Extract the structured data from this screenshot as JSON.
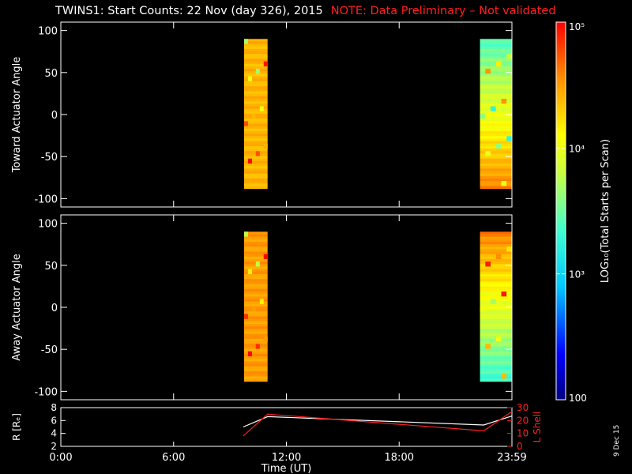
{
  "title": {
    "main": "TWINS1: Start Counts: 22 Nov (day 326), 2015",
    "note": "NOTE: Data Preliminary – Not validated"
  },
  "stamp": "9 Dec 15",
  "colors": {
    "background": "#000000",
    "axes": "#ffffff",
    "note": "#ff2020",
    "lshell": "#ff2020",
    "r_line": "#ffffff"
  },
  "chart_data": [
    {
      "type": "heatmap",
      "panel": "toward",
      "ylabel": "Toward Actuator Angle",
      "ylim": [
        -110,
        110
      ],
      "yticks": [
        "100",
        "50",
        "0",
        "-50",
        "-100"
      ],
      "ytick_values": [
        100,
        50,
        0,
        -50,
        -100
      ],
      "xlim": [
        0,
        24
      ],
      "blocks": [
        {
          "x_start": 9.75,
          "x_end": 11.0,
          "y_start": -88,
          "y_end": 90,
          "dominant_log10": 4.4
        },
        {
          "x_start": 22.3,
          "x_end": 24.0,
          "y_start": -88,
          "y_end": 90,
          "dominant_log10": 3.8
        }
      ]
    },
    {
      "type": "heatmap",
      "panel": "away",
      "ylabel": "Away Actuator Angle",
      "ylim": [
        -110,
        110
      ],
      "yticks": [
        "100",
        "50",
        "0",
        "-50",
        "-100"
      ],
      "ytick_values": [
        100,
        50,
        0,
        -50,
        -100
      ],
      "xlim": [
        0,
        24
      ],
      "blocks": [
        {
          "x_start": 9.75,
          "x_end": 11.0,
          "y_start": -88,
          "y_end": 90,
          "dominant_log10": 4.5
        },
        {
          "x_start": 22.3,
          "x_end": 24.0,
          "y_start": -88,
          "y_end": 90,
          "dominant_log10": 4.2
        }
      ]
    },
    {
      "type": "line",
      "panel": "orbit",
      "ylabel": "R [Rₑ]",
      "ylabel_right": "L Shell",
      "ylim": [
        2,
        8
      ],
      "ylim_right": [
        0,
        30
      ],
      "yticks": [
        "8",
        "6",
        "4",
        "2"
      ],
      "ytick_values": [
        8,
        6,
        4,
        2
      ],
      "yticks_right": [
        "30",
        "20",
        "10",
        "0"
      ],
      "ytick_values_right": [
        30,
        20,
        10,
        0
      ],
      "xlabel": "Time (UT)",
      "xlim": [
        0,
        24
      ],
      "xticks": [
        "0:00",
        "6:00",
        "12:00",
        "18:00",
        "23:59"
      ],
      "xtick_values": [
        0,
        6,
        12,
        18,
        24
      ],
      "series": [
        {
          "name": "R",
          "x": [
            9.7,
            11.0,
            22.5,
            24.0
          ],
          "y": [
            5.0,
            6.6,
            5.3,
            6.7
          ]
        },
        {
          "name": "L Shell",
          "x": [
            9.7,
            11.0,
            22.5,
            24.0
          ],
          "y": [
            8,
            25,
            12,
            27
          ]
        }
      ]
    }
  ],
  "colorbar": {
    "label": "LOG₁₀(Total Starts per Scan)",
    "min_log10": 2,
    "max_log10": 5,
    "ticks": [
      "100",
      "10³",
      "10⁴",
      "10⁵"
    ],
    "tick_values": [
      2,
      3,
      4,
      5
    ]
  }
}
